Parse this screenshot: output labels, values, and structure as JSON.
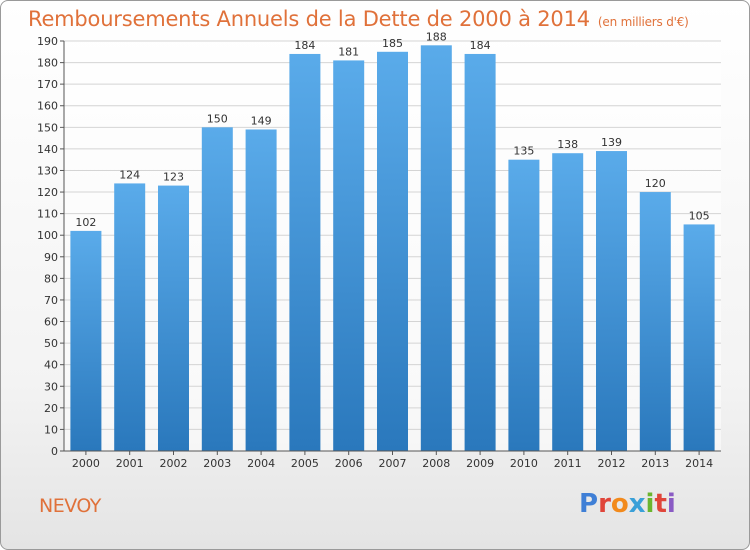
{
  "header": {
    "title": "Remboursements Annuels de la Dette de 2000 à 2014",
    "subtitle": "(en milliers d'€)"
  },
  "footer": {
    "commune": "NEVOY",
    "logo_text": "Proxiti",
    "logo_colors": [
      "#3f7fd6",
      "#e0453a",
      "#f28a1c",
      "#3aa0d8",
      "#6bb52e",
      "#e0453a",
      "#8a5bc4"
    ]
  },
  "chart_data": {
    "type": "bar",
    "title": "Remboursements Annuels de la Dette de 2000 à 2014",
    "subtitle": "(en milliers d'€)",
    "categories": [
      "2000",
      "2001",
      "2002",
      "2003",
      "2004",
      "2005",
      "2006",
      "2007",
      "2008",
      "2009",
      "2010",
      "2011",
      "2012",
      "2013",
      "2014"
    ],
    "values": [
      102,
      124,
      123,
      150,
      149,
      184,
      181,
      185,
      188,
      184,
      135,
      138,
      139,
      120,
      105
    ],
    "xlabel": "",
    "ylabel": "",
    "ylim": [
      0,
      190
    ],
    "yticks": [
      0,
      10,
      20,
      30,
      40,
      50,
      60,
      70,
      80,
      90,
      100,
      110,
      120,
      130,
      140,
      150,
      160,
      170,
      180,
      190
    ],
    "grid": true,
    "bar_color_top": "#5aabea",
    "bar_color_bottom": "#2a78bc"
  }
}
